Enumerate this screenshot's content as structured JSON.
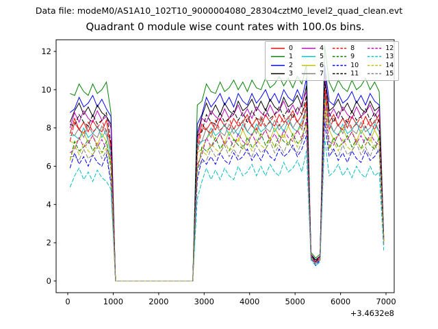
{
  "header": {
    "datafile_label": "Data file: modeM0/AS1A10_102T10_9000004080_28304cztM0_level2_quad_clean.evt"
  },
  "chart_data": {
    "type": "line",
    "title": "Quadrant 0 module wise count rates with 100.0s bins.",
    "xlabel": "",
    "ylabel": "",
    "x_offset_label": "+3.4632e8",
    "grid": false,
    "legend_position": "upper right",
    "legend_columns": 4,
    "x_start": 50,
    "x_step": 100,
    "xlim": [
      -256,
      7180
    ],
    "ylim": [
      -0.61,
      12.61
    ],
    "xticks": [
      0,
      1000,
      2000,
      3000,
      4000,
      5000,
      6000,
      7000
    ],
    "yticks": [
      0,
      2,
      4,
      6,
      8,
      10,
      12
    ],
    "series": [
      {
        "name": "0",
        "color": "#ff0000",
        "dash": false,
        "values": [
          7.7,
          8.5,
          7.9,
          8.3,
          7.8,
          8.4,
          8.0,
          7.8,
          8.4,
          6.9,
          0,
          0,
          0,
          0,
          0,
          0,
          0,
          0,
          0,
          0,
          0,
          0,
          0,
          0,
          0,
          0,
          0,
          0,
          7.1,
          8.2,
          7.9,
          8.3,
          7.9,
          8.5,
          8.1,
          7.9,
          8.5,
          8.1,
          8.3,
          8.7,
          8.1,
          8.5,
          8.1,
          8.7,
          8.3,
          8.1,
          8.7,
          8.3,
          8.5,
          8.9,
          8.3,
          8.7,
          9.4,
          1.3,
          1.0,
          1.2,
          10.1,
          8.3,
          8.7,
          8.1,
          8.5,
          8.0,
          8.6,
          8.2,
          8.0,
          8.6,
          8.1,
          8.3,
          8.7,
          2.1
        ]
      },
      {
        "name": "1",
        "color": "#008000",
        "dash": false,
        "values": [
          9.8,
          9.7,
          10.3,
          9.9,
          9.7,
          10.3,
          9.8,
          10.0,
          10.4,
          8.8,
          0,
          0,
          0,
          0,
          0,
          0,
          0,
          0,
          0,
          0,
          0,
          0,
          0,
          0,
          0,
          0,
          0,
          0,
          9.2,
          9.4,
          10.3,
          9.9,
          9.8,
          10.4,
          9.9,
          10.1,
          10.5,
          10.0,
          10.4,
          9.9,
          10.5,
          10.1,
          10.0,
          10.6,
          10.1,
          10.3,
          10.7,
          10.2,
          10.6,
          10.1,
          10.7,
          10.3,
          11.3,
          1.5,
          1.2,
          1.4,
          12.3,
          10.4,
          9.9,
          10.5,
          10.1,
          9.9,
          10.5,
          10.0,
          10.2,
          10.6,
          10.0,
          10.4,
          9.9,
          2.3
        ]
      },
      {
        "name": "2",
        "color": "#0000ff",
        "dash": false,
        "values": [
          8.8,
          9.0,
          9.6,
          9.1,
          9.3,
          9.7,
          9.1,
          9.5,
          9.0,
          8.6,
          0,
          0,
          0,
          0,
          0,
          0,
          0,
          0,
          0,
          0,
          0,
          0,
          0,
          0,
          0,
          0,
          0,
          0,
          8.2,
          8.7,
          9.6,
          9.1,
          9.4,
          9.8,
          9.2,
          9.6,
          9.1,
          9.8,
          9.4,
          9.2,
          9.8,
          9.3,
          9.6,
          10.0,
          9.4,
          9.8,
          9.3,
          10.0,
          9.6,
          9.4,
          10.0,
          9.5,
          10.6,
          1.4,
          1.1,
          1.3,
          11.3,
          9.4,
          9.2,
          9.8,
          9.3,
          9.5,
          9.9,
          9.3,
          9.7,
          9.2,
          9.8,
          9.4,
          9.2,
          2.3
        ]
      },
      {
        "name": "3",
        "color": "#000000",
        "dash": false,
        "values": [
          8.3,
          8.9,
          9.3,
          8.7,
          9.1,
          8.6,
          9.2,
          8.8,
          8.6,
          8.2,
          0,
          0,
          0,
          0,
          0,
          0,
          0,
          0,
          0,
          0,
          0,
          0,
          0,
          0,
          0,
          0,
          0,
          0,
          7.7,
          8.6,
          9.3,
          8.7,
          9.2,
          8.7,
          9.3,
          8.9,
          8.7,
          9.4,
          8.9,
          9.1,
          9.5,
          8.9,
          9.4,
          8.9,
          9.5,
          9.1,
          8.9,
          9.6,
          9.1,
          9.3,
          9.7,
          9.1,
          10.2,
          1.4,
          1.1,
          1.3,
          10.9,
          8.9,
          9.1,
          9.5,
          8.9,
          9.3,
          8.8,
          9.4,
          9.0,
          8.8,
          9.4,
          8.9,
          9.1,
          2.2
        ]
      },
      {
        "name": "4",
        "color": "#bf00bf",
        "dash": false,
        "values": [
          8.0,
          8.8,
          8.3,
          8.9,
          8.5,
          8.3,
          8.9,
          8.4,
          8.6,
          8.0,
          0,
          0,
          0,
          0,
          0,
          0,
          0,
          0,
          0,
          0,
          0,
          0,
          0,
          0,
          0,
          0,
          0,
          0,
          7.4,
          8.5,
          8.3,
          8.9,
          8.6,
          8.4,
          9.0,
          8.5,
          8.7,
          9.2,
          8.6,
          9.0,
          8.5,
          9.1,
          8.8,
          8.6,
          9.2,
          8.7,
          8.9,
          9.4,
          8.8,
          9.2,
          8.7,
          9.3,
          9.9,
          1.4,
          1.0,
          1.3,
          10.6,
          8.6,
          9.0,
          8.5,
          9.1,
          8.7,
          8.5,
          9.1,
          8.6,
          8.8,
          9.2,
          8.6,
          9.0,
          2.2
        ]
      },
      {
        "name": "5",
        "color": "#00bfbf",
        "dash": false,
        "values": [
          7.6,
          7.6,
          7.4,
          8.0,
          7.5,
          7.7,
          8.1,
          7.5,
          7.9,
          6.4,
          0,
          0,
          0,
          0,
          0,
          0,
          0,
          0,
          0,
          0,
          0,
          0,
          0,
          0,
          0,
          0,
          0,
          0,
          7.0,
          7.3,
          7.4,
          8.0,
          7.6,
          7.8,
          8.2,
          7.6,
          8.0,
          7.6,
          8.2,
          7.8,
          7.6,
          8.2,
          7.8,
          8.0,
          8.4,
          7.8,
          8.2,
          7.8,
          8.4,
          8.0,
          7.8,
          8.4,
          9.0,
          1.3,
          1.0,
          1.2,
          9.7,
          8.2,
          7.8,
          7.6,
          8.2,
          7.7,
          7.9,
          8.3,
          7.7,
          8.1,
          7.6,
          8.2,
          7.8,
          2.1
        ]
      },
      {
        "name": "6",
        "color": "#bfbf00",
        "dash": false,
        "values": [
          7.3,
          7.2,
          7.4,
          7.8,
          7.2,
          7.6,
          7.1,
          7.7,
          7.3,
          6.1,
          0,
          0,
          0,
          0,
          0,
          0,
          0,
          0,
          0,
          0,
          0,
          0,
          0,
          0,
          0,
          0,
          0,
          0,
          6.7,
          6.9,
          7.4,
          7.8,
          7.3,
          7.7,
          7.2,
          7.8,
          7.4,
          7.3,
          7.9,
          7.4,
          7.6,
          8.0,
          7.5,
          7.9,
          7.4,
          8.0,
          7.6,
          7.5,
          8.1,
          7.6,
          7.8,
          8.2,
          8.7,
          1.3,
          0.9,
          1.2,
          9.4,
          7.9,
          7.4,
          7.6,
          8.0,
          7.4,
          7.8,
          7.3,
          7.9,
          7.5,
          7.3,
          7.9,
          7.4,
          2.0
        ]
      },
      {
        "name": "7",
        "color": "#808080",
        "dash": false,
        "values": [
          7.8,
          7.6,
          8.0,
          7.5,
          8.1,
          7.7,
          7.5,
          8.1,
          7.6,
          6.8,
          0,
          0,
          0,
          0,
          0,
          0,
          0,
          0,
          0,
          0,
          0,
          0,
          0,
          0,
          0,
          0,
          0,
          0,
          7.2,
          7.3,
          8.0,
          7.5,
          8.2,
          7.8,
          7.6,
          8.2,
          7.7,
          8.0,
          8.4,
          7.8,
          8.2,
          7.7,
          8.4,
          8.0,
          7.8,
          8.4,
          7.9,
          8.2,
          8.6,
          8.0,
          8.4,
          7.9,
          9.1,
          1.3,
          1.0,
          1.2,
          9.8,
          8.4,
          7.8,
          8.2,
          7.7,
          8.3,
          7.9,
          7.7,
          8.3,
          7.8,
          8.0,
          8.4,
          7.8,
          2.1
        ]
      },
      {
        "name": "8",
        "color": "#ff0000",
        "dash": true,
        "values": [
          7.3,
          8.3,
          7.9,
          7.7,
          8.3,
          7.8,
          8.0,
          8.4,
          7.8,
          7.2,
          0,
          0,
          0,
          0,
          0,
          0,
          0,
          0,
          0,
          0,
          0,
          0,
          0,
          0,
          0,
          0,
          0,
          0,
          6.7,
          8.0,
          7.9,
          7.7,
          8.4,
          7.9,
          8.1,
          8.5,
          7.9,
          8.4,
          7.9,
          8.5,
          8.1,
          7.9,
          8.6,
          8.1,
          8.3,
          8.7,
          8.1,
          8.6,
          8.1,
          8.7,
          8.3,
          8.1,
          9.3,
          1.3,
          1.0,
          1.2,
          10.0,
          7.9,
          8.5,
          8.1,
          7.9,
          8.5,
          8.0,
          8.2,
          8.6,
          8.0,
          8.4,
          7.9,
          8.5,
          2.1
        ]
      },
      {
        "name": "9",
        "color": "#008000",
        "dash": true,
        "values": [
          6.3,
          7.3,
          6.8,
          7.0,
          7.4,
          6.8,
          7.2,
          6.7,
          7.3,
          5.9,
          0,
          0,
          0,
          0,
          0,
          0,
          0,
          0,
          0,
          0,
          0,
          0,
          0,
          0,
          0,
          0,
          0,
          0,
          5.7,
          7.0,
          6.8,
          7.0,
          7.5,
          6.9,
          7.3,
          6.8,
          7.4,
          7.1,
          6.9,
          7.5,
          7.0,
          7.2,
          7.7,
          7.1,
          7.5,
          7.0,
          7.6,
          7.3,
          7.1,
          7.7,
          7.2,
          7.4,
          8.3,
          1.2,
          0.9,
          1.1,
          9.0,
          6.9,
          7.5,
          7.0,
          7.2,
          7.6,
          7.0,
          7.4,
          6.9,
          7.5,
          7.1,
          6.9,
          7.5,
          2.0
        ]
      },
      {
        "name": "10",
        "color": "#0000ff",
        "dash": true,
        "values": [
          5.9,
          6.7,
          6.1,
          6.5,
          6.0,
          6.6,
          6.2,
          6.0,
          6.6,
          5.1,
          0,
          0,
          0,
          0,
          0,
          0,
          0,
          0,
          0,
          0,
          0,
          0,
          0,
          0,
          0,
          0,
          0,
          0,
          5.3,
          6.4,
          6.1,
          6.5,
          6.1,
          6.7,
          6.3,
          6.1,
          6.7,
          6.3,
          6.5,
          6.9,
          6.3,
          6.7,
          6.3,
          6.9,
          6.5,
          6.3,
          6.9,
          6.5,
          6.7,
          7.1,
          6.5,
          6.9,
          7.6,
          1.2,
          0.8,
          1.1,
          8.3,
          6.5,
          6.9,
          6.3,
          6.7,
          6.2,
          6.8,
          6.4,
          6.2,
          6.8,
          6.3,
          6.5,
          6.9,
          1.9
        ]
      },
      {
        "name": "11",
        "color": "#000000",
        "dash": true,
        "values": [
          8.2,
          8.1,
          8.7,
          8.3,
          8.1,
          8.7,
          8.2,
          8.4,
          8.8,
          7.2,
          0,
          0,
          0,
          0,
          0,
          0,
          0,
          0,
          0,
          0,
          0,
          0,
          0,
          0,
          0,
          0,
          0,
          0,
          7.6,
          7.8,
          8.7,
          8.3,
          8.2,
          8.8,
          8.3,
          8.5,
          8.9,
          8.4,
          8.8,
          8.3,
          8.9,
          8.5,
          8.4,
          9.0,
          8.5,
          8.7,
          9.1,
          8.6,
          9.0,
          8.5,
          9.1,
          8.7,
          9.7,
          1.4,
          1.0,
          1.3,
          10.4,
          8.8,
          8.3,
          8.9,
          8.5,
          8.3,
          8.9,
          8.4,
          8.6,
          9.0,
          8.4,
          8.8,
          8.3,
          2.1
        ]
      },
      {
        "name": "12",
        "color": "#bf00bf",
        "dash": true,
        "values": [
          6.7,
          6.9,
          7.5,
          7.0,
          7.2,
          7.6,
          7.0,
          7.4,
          6.9,
          6.5,
          0,
          0,
          0,
          0,
          0,
          0,
          0,
          0,
          0,
          0,
          0,
          0,
          0,
          0,
          0,
          0,
          0,
          0,
          6.1,
          6.6,
          7.5,
          7.0,
          7.3,
          7.7,
          7.1,
          7.5,
          7.0,
          7.7,
          7.3,
          7.1,
          7.7,
          7.2,
          7.5,
          7.9,
          7.3,
          7.7,
          7.2,
          7.9,
          7.5,
          7.3,
          7.9,
          7.4,
          8.5,
          1.3,
          0.9,
          1.2,
          9.2,
          7.3,
          7.1,
          7.7,
          7.2,
          7.4,
          7.8,
          7.2,
          7.6,
          7.1,
          7.7,
          7.3,
          7.1,
          2.0
        ]
      },
      {
        "name": "13",
        "color": "#00bfbf",
        "dash": true,
        "values": [
          4.9,
          5.5,
          5.9,
          5.3,
          5.7,
          5.2,
          5.8,
          5.4,
          5.2,
          4.8,
          0,
          0,
          0,
          0,
          0,
          0,
          0,
          0,
          0,
          0,
          0,
          0,
          0,
          0,
          0,
          0,
          0,
          0,
          4.3,
          5.2,
          5.9,
          5.3,
          5.8,
          5.3,
          5.9,
          5.5,
          5.3,
          6.0,
          5.5,
          5.7,
          6.1,
          5.5,
          6.0,
          5.5,
          6.1,
          5.7,
          5.5,
          6.2,
          5.7,
          5.9,
          6.3,
          5.7,
          6.8,
          1.1,
          0.8,
          1.0,
          7.5,
          5.5,
          5.7,
          6.1,
          5.5,
          5.9,
          5.4,
          6.0,
          5.6,
          5.4,
          6.0,
          5.5,
          5.7,
          1.6
        ]
      },
      {
        "name": "14",
        "color": "#bfbf00",
        "dash": true,
        "values": [
          6.3,
          7.1,
          6.6,
          7.2,
          6.8,
          6.6,
          7.2,
          6.7,
          6.9,
          6.3,
          0,
          0,
          0,
          0,
          0,
          0,
          0,
          0,
          0,
          0,
          0,
          0,
          0,
          0,
          0,
          0,
          0,
          0,
          5.9,
          6.8,
          6.6,
          7.2,
          6.9,
          6.7,
          7.3,
          6.8,
          7.0,
          7.5,
          6.9,
          7.3,
          6.8,
          7.4,
          7.1,
          6.9,
          7.5,
          7.0,
          7.2,
          7.7,
          7.1,
          7.5,
          7.0,
          7.6,
          8.2,
          1.2,
          0.9,
          1.1,
          8.9,
          6.9,
          7.3,
          6.8,
          7.4,
          7.0,
          6.8,
          7.4,
          6.9,
          7.1,
          7.5,
          6.9,
          7.3,
          2.0
        ]
      },
      {
        "name": "15",
        "color": "#808080",
        "dash": true,
        "values": [
          6.5,
          6.5,
          6.3,
          6.9,
          6.4,
          6.6,
          7.0,
          6.4,
          6.8,
          5.3,
          0,
          0,
          0,
          0,
          0,
          0,
          0,
          0,
          0,
          0,
          0,
          0,
          0,
          0,
          0,
          0,
          0,
          0,
          5.9,
          6.2,
          6.3,
          6.9,
          6.5,
          6.7,
          7.1,
          6.5,
          6.9,
          6.5,
          7.1,
          6.7,
          6.5,
          7.1,
          6.7,
          6.9,
          7.3,
          6.7,
          7.1,
          6.7,
          7.3,
          6.9,
          6.7,
          7.3,
          7.9,
          1.2,
          0.9,
          1.1,
          8.6,
          7.1,
          6.7,
          6.5,
          7.1,
          6.6,
          6.8,
          7.2,
          6.6,
          7.0,
          6.5,
          7.1,
          6.7,
          1.9
        ]
      }
    ]
  }
}
